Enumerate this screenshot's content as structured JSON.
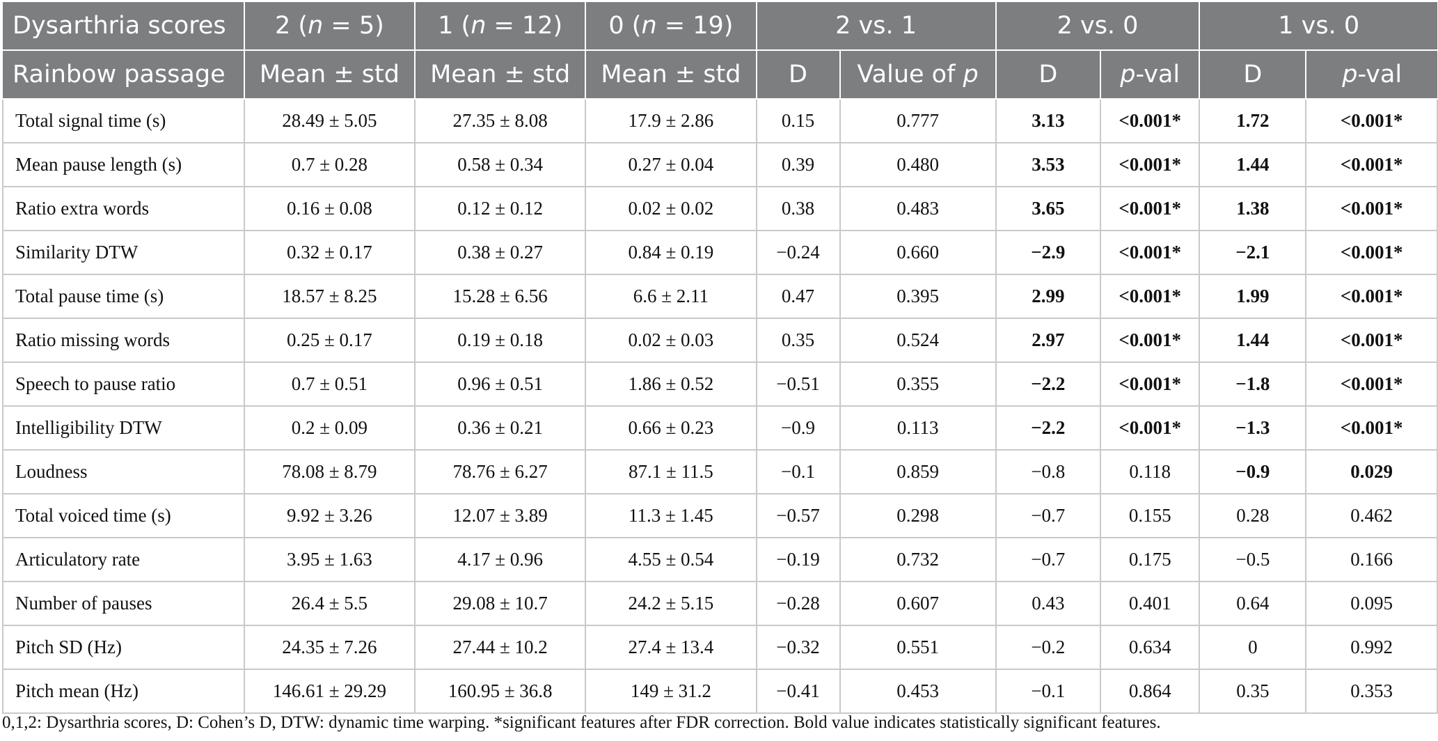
{
  "header": {
    "row1": {
      "col0": "Dysarthria scores",
      "g2_pre": "2 (",
      "g2_n": "n",
      "g2_post": " = 5)",
      "g1_pre": "1 (",
      "g1_n": "n",
      "g1_post": " = 12)",
      "g0_pre": "0 (",
      "g0_n": "n",
      "g0_post": " = 19)",
      "cmp21": "2 vs. 1",
      "cmp20": "2 vs. 0",
      "cmp10": "1 vs. 0"
    },
    "row2": {
      "col0": "Rainbow passage",
      "mean1": "Mean ± std",
      "mean2": "Mean ± std",
      "mean3": "Mean ± std",
      "d1": "D",
      "vop_pre": "Value of ",
      "vop_p": "p",
      "d2": "D",
      "pval2_p": "p",
      "pval2_post": "-val",
      "d3": "D",
      "pval3_p": "p",
      "pval3_post": "-val"
    }
  },
  "rows": [
    {
      "feature": "Total signal time (s)",
      "m2": "28.49 ± 5.05",
      "m1": "27.35 ± 8.08",
      "m0": "17.9 ± 2.86",
      "d21": "0.15",
      "p21": "0.777",
      "d20": "3.13",
      "p20": "<0.001*",
      "d10": "1.72",
      "p10": "<0.001*"
    },
    {
      "feature": "Mean pause length (s)",
      "m2": "0.7 ± 0.28",
      "m1": "0.58 ± 0.34",
      "m0": "0.27 ± 0.04",
      "d21": "0.39",
      "p21": "0.480",
      "d20": "3.53",
      "p20": "<0.001*",
      "d10": "1.44",
      "p10": "<0.001*"
    },
    {
      "feature": "Ratio extra words",
      "m2": "0.16 ± 0.08",
      "m1": "0.12 ± 0.12",
      "m0": "0.02 ± 0.02",
      "d21": "0.38",
      "p21": "0.483",
      "d20": "3.65",
      "p20": "<0.001*",
      "d10": "1.38",
      "p10": "<0.001*"
    },
    {
      "feature": "Similarity DTW",
      "m2": "0.32 ± 0.17",
      "m1": "0.38 ± 0.27",
      "m0": "0.84 ± 0.19",
      "d21": "−0.24",
      "p21": "0.660",
      "d20": "−2.9",
      "p20": "<0.001*",
      "d10": "−2.1",
      "p10": "<0.001*"
    },
    {
      "feature": "Total pause time (s)",
      "m2": "18.57 ± 8.25",
      "m1": "15.28 ± 6.56",
      "m0": "6.6 ± 2.11",
      "d21": "0.47",
      "p21": "0.395",
      "d20": "2.99",
      "p20": "<0.001*",
      "d10": "1.99",
      "p10": "<0.001*"
    },
    {
      "feature": "Ratio missing words",
      "m2": "0.25 ± 0.17",
      "m1": "0.19 ± 0.18",
      "m0": "0.02 ± 0.03",
      "d21": "0.35",
      "p21": "0.524",
      "d20": "2.97",
      "p20": "<0.001*",
      "d10": "1.44",
      "p10": "<0.001*"
    },
    {
      "feature": "Speech to pause ratio",
      "m2": "0.7 ± 0.51",
      "m1": "0.96 ± 0.51",
      "m0": "1.86 ± 0.52",
      "d21": "−0.51",
      "p21": "0.355",
      "d20": "−2.2",
      "p20": "<0.001*",
      "d10": "−1.8",
      "p10": "<0.001*"
    },
    {
      "feature": "Intelligibility DTW",
      "m2": "0.2 ± 0.09",
      "m1": "0.36 ± 0.21",
      "m0": "0.66 ± 0.23",
      "d21": "−0.9",
      "p21": "0.113",
      "d20": "−2.2",
      "p20": "<0.001*",
      "d10": "−1.3",
      "p10": "<0.001*"
    },
    {
      "feature": "Loudness",
      "m2": "78.08 ± 8.79",
      "m1": "78.76 ± 6.27",
      "m0": "87.1 ± 11.5",
      "d21": "−0.1",
      "p21": "0.859",
      "d20": "−0.8",
      "p20": "0.118",
      "d10": "−0.9",
      "p10": "0.029"
    },
    {
      "feature": "Total voiced time (s)",
      "m2": "9.92 ± 3.26",
      "m1": "12.07 ± 3.89",
      "m0": "11.3 ± 1.45",
      "d21": "−0.57",
      "p21": "0.298",
      "d20": "−0.7",
      "p20": "0.155",
      "d10": "0.28",
      "p10": "0.462"
    },
    {
      "feature": "Articulatory rate",
      "m2": "3.95 ± 1.63",
      "m1": "4.17 ± 0.96",
      "m0": "4.55 ± 0.54",
      "d21": "−0.19",
      "p21": "0.732",
      "d20": "−0.7",
      "p20": "0.175",
      "d10": "−0.5",
      "p10": "0.166"
    },
    {
      "feature": "Number of pauses",
      "m2": "26.4 ± 5.5",
      "m1": "29.08 ± 10.7",
      "m0": "24.2 ± 5.15",
      "d21": "−0.28",
      "p21": "0.607",
      "d20": "0.43",
      "p20": "0.401",
      "d10": "0.64",
      "p10": "0.095"
    },
    {
      "feature": "Pitch SD (Hz)",
      "m2": "24.35 ± 7.26",
      "m1": "27.44 ± 10.2",
      "m0": "27.4 ± 13.4",
      "d21": "−0.32",
      "p21": "0.551",
      "d20": "−0.2",
      "p20": "0.634",
      "d10": "0",
      "p10": "0.992"
    },
    {
      "feature": "Pitch mean (Hz)",
      "m2": "146.61 ± 29.29",
      "m1": "160.95 ± 36.8",
      "m0": "149 ± 31.2",
      "d21": "−0.41",
      "p21": "0.453",
      "d20": "−0.1",
      "p20": "0.864",
      "d10": "0.35",
      "p10": "0.353"
    }
  ],
  "bold_cols": {
    "d20": [
      0,
      1,
      2,
      3,
      4,
      5,
      6,
      7
    ],
    "p20": [
      0,
      1,
      2,
      3,
      4,
      5,
      6,
      7
    ],
    "d10": [
      0,
      1,
      2,
      3,
      4,
      5,
      6,
      7,
      8
    ],
    "p10": [
      0,
      1,
      2,
      3,
      4,
      5,
      6,
      7,
      8
    ]
  },
  "footnote": "0,1,2: Dysarthria scores, D: Cohen’s D, DTW: dynamic time warping. *significant features after FDR correction. Bold value indicates statistically significant features.",
  "colors": {
    "header_bg": "#7c7e80",
    "header_text": "#ffffff",
    "grid": "#c9c9c9"
  }
}
